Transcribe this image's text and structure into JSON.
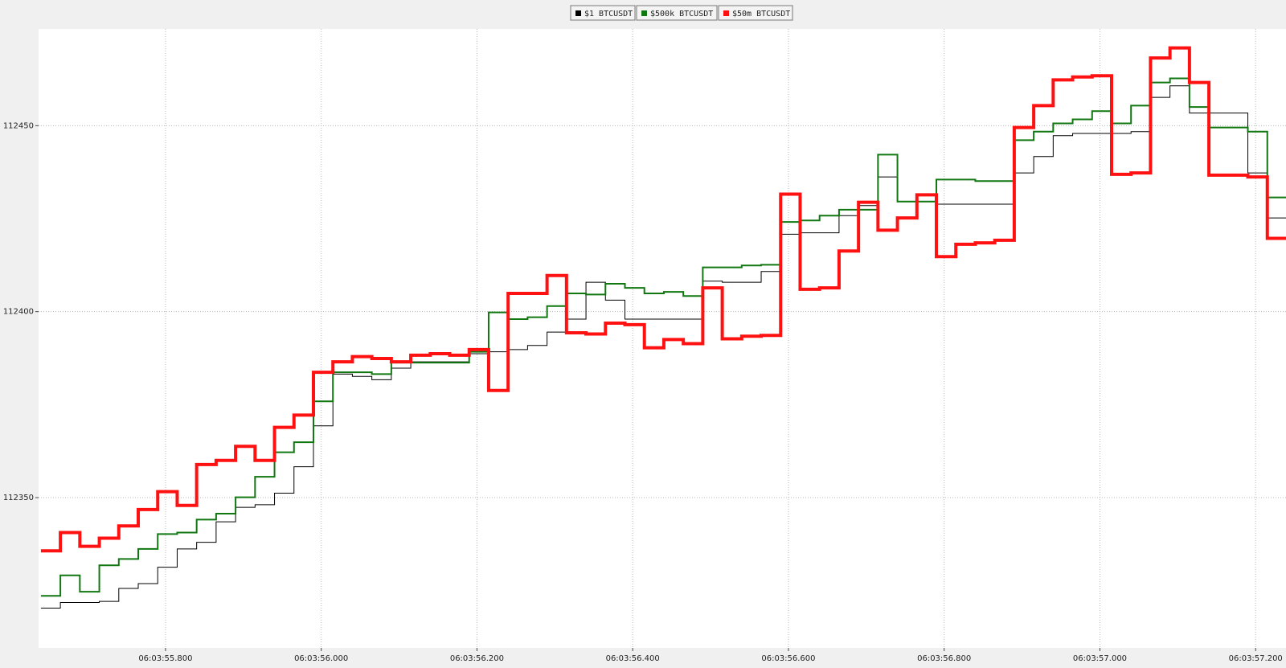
{
  "chart_data": {
    "type": "step",
    "x": [
      55.64,
      55.665,
      55.69,
      55.715,
      55.74,
      55.765,
      55.79,
      55.815,
      55.84,
      55.865,
      55.89,
      55.915,
      55.94,
      55.965,
      55.99,
      56.015,
      56.04,
      56.065,
      56.09,
      56.115,
      56.14,
      56.165,
      56.19,
      56.215,
      56.24,
      56.265,
      56.29,
      56.315,
      56.34,
      56.365,
      56.39,
      56.415,
      56.44,
      56.465,
      56.49,
      56.515,
      56.54,
      56.565,
      56.59,
      56.615,
      56.64,
      56.665,
      56.69,
      56.715,
      56.74,
      56.765,
      56.79,
      56.815,
      56.84,
      56.865,
      56.89,
      56.915,
      56.94,
      56.965,
      56.99,
      57.015,
      57.04,
      57.065,
      57.09,
      57.115,
      57.14,
      57.165,
      57.19,
      57.215
    ],
    "series": [
      {
        "name": "$1 BTCUSDT",
        "color": "#000000",
        "values": [
          112320.3,
          112321.8,
          112321.8,
          112322.1,
          112325.6,
          112326.9,
          112331.3,
          112336.2,
          112338.0,
          112343.5,
          112347.4,
          112348.1,
          112351.2,
          112358.3,
          112369.3,
          112383.2,
          112382.6,
          112381.7,
          112384.8,
          112386.5,
          112386.5,
          112386.5,
          112388.7,
          112389.2,
          112389.8,
          112390.9,
          112394.5,
          112398.0,
          112407.9,
          112403.1,
          112398.0,
          112398.0,
          112398.0,
          112398.0,
          112408.2,
          112407.9,
          112407.9,
          112410.8,
          112420.8,
          112421.2,
          112421.2,
          112425.8,
          112428.5,
          112436.2,
          112429.6,
          112429.6,
          112428.9,
          112428.9,
          112428.9,
          112428.9,
          112437.3,
          112441.7,
          112447.3,
          112447.9,
          112447.9,
          112447.9,
          112448.4,
          112457.6,
          112460.7,
          112453.4,
          112453.4,
          112453.4,
          112437.3,
          112425.2
        ]
      },
      {
        "name": "$500k BTCUSDT",
        "color": "#117711",
        "values": [
          112323.6,
          112329.1,
          112324.7,
          112331.8,
          112333.5,
          112336.2,
          112340.2,
          112340.6,
          112344.1,
          112345.7,
          112350.1,
          112355.6,
          112362.2,
          112364.9,
          112375.9,
          112383.7,
          112383.7,
          112383.2,
          112386.3,
          112386.3,
          112386.3,
          112386.3,
          112389.2,
          112399.8,
          112398.0,
          112398.5,
          112401.5,
          112404.9,
          112404.6,
          112407.5,
          112406.4,
          112404.9,
          112405.3,
          112404.2,
          112411.9,
          112411.9,
          112412.4,
          112412.6,
          112424.1,
          112424.5,
          112425.8,
          112427.4,
          112427.4,
          112442.2,
          112429.6,
          112429.6,
          112435.5,
          112435.5,
          112435.1,
          112435.1,
          112446.1,
          112448.4,
          112450.6,
          112451.7,
          112453.9,
          112450.6,
          112455.4,
          112461.6,
          112462.7,
          112455.0,
          112449.5,
          112449.5,
          112448.4,
          112430.7
        ]
      },
      {
        "name": "$50m BTCUSDT",
        "color": "#ff1111",
        "values": [
          112335.7,
          112340.6,
          112336.9,
          112339.1,
          112342.4,
          112346.8,
          112351.6,
          112347.9,
          112358.9,
          112360.0,
          112363.8,
          112360.0,
          112368.9,
          112372.2,
          112383.7,
          112386.5,
          112387.9,
          112387.4,
          112386.5,
          112388.3,
          112388.7,
          112388.3,
          112389.8,
          112378.8,
          112404.9,
          112404.9,
          112409.7,
          112394.3,
          112394.0,
          112396.9,
          112396.5,
          112390.3,
          112392.5,
          112391.4,
          112406.4,
          112392.7,
          112393.4,
          112393.6,
          112431.6,
          112406.0,
          112406.4,
          112416.3,
          112429.4,
          112421.9,
          112425.2,
          112431.4,
          112414.8,
          112418.1,
          112418.5,
          112419.2,
          112449.5,
          112455.4,
          112462.3,
          112463.1,
          112463.4,
          112436.9,
          112437.3,
          112468.2,
          112470.9,
          112461.6,
          112436.7,
          112436.7,
          112436.2,
          112419.7
        ]
      }
    ],
    "xlim": [
      55.637,
      57.239
    ],
    "xticks": [
      {
        "value": 55.8,
        "label": "06:03:55.800"
      },
      {
        "value": 56.0,
        "label": "06:03:56.000"
      },
      {
        "value": 56.2,
        "label": "06:03:56.200"
      },
      {
        "value": 56.4,
        "label": "06:03:56.400"
      },
      {
        "value": 56.6,
        "label": "06:03:56.600"
      },
      {
        "value": 56.8,
        "label": "06:03:56.800"
      },
      {
        "value": 57.0,
        "label": "06:03:57.000"
      },
      {
        "value": 57.2,
        "label": "06:03:57.200"
      }
    ],
    "ylim": [
      112309.6,
      112476
    ],
    "yticks": [
      112350,
      112400,
      112450
    ],
    "grid": true
  }
}
